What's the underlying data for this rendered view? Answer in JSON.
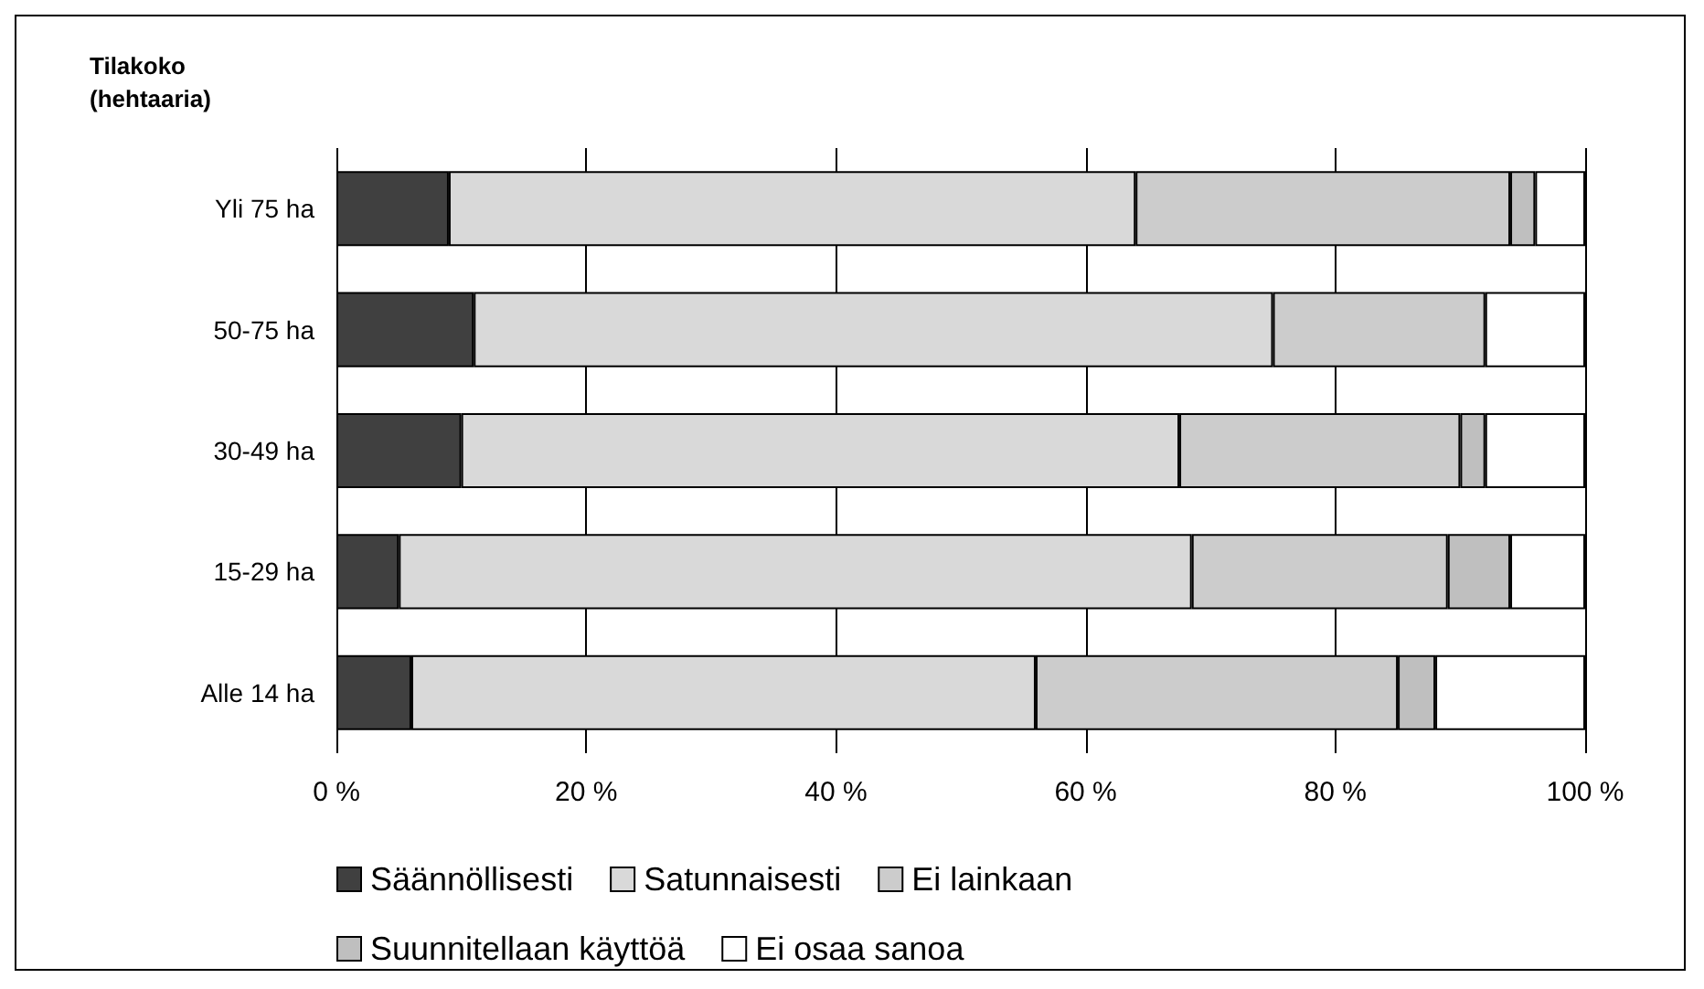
{
  "chart_data": {
    "type": "bar",
    "orientation": "horizontal",
    "stacked": true,
    "ylabel": "Tilakoko (hehtaaria)",
    "categories": [
      "Yli 75 ha",
      "50-75 ha",
      "30-49 ha",
      "15-29 ha",
      "Alle 14 ha"
    ],
    "series": [
      {
        "name": "Säännöllisesti",
        "color": "#404040",
        "values": [
          9,
          11,
          10,
          5,
          6
        ]
      },
      {
        "name": "Satunnaisesti",
        "color": "#d9d9d9",
        "values": [
          55,
          64,
          57.5,
          63.5,
          50
        ]
      },
      {
        "name": "Ei lainkaan",
        "color": "#cccccc",
        "values": [
          30,
          17,
          22.5,
          20.5,
          29
        ]
      },
      {
        "name": "Suunnitellaan käyttöä",
        "color": "#bfbfbf",
        "values": [
          2,
          0,
          2,
          5,
          3
        ]
      },
      {
        "name": "Ei osaa sanoa",
        "color": "#ffffff",
        "values": [
          4,
          8,
          8,
          6,
          12
        ]
      }
    ],
    "xlim": [
      0,
      100
    ],
    "xticks": [
      {
        "value": 0,
        "label": "0 %"
      },
      {
        "value": 20,
        "label": "20 %"
      },
      {
        "value": 40,
        "label": "40 %"
      },
      {
        "value": 60,
        "label": "60 %"
      },
      {
        "value": 80,
        "label": "80 %"
      },
      {
        "value": 100,
        "label": "100 %"
      }
    ],
    "grid": "x",
    "legend": "bottom"
  }
}
